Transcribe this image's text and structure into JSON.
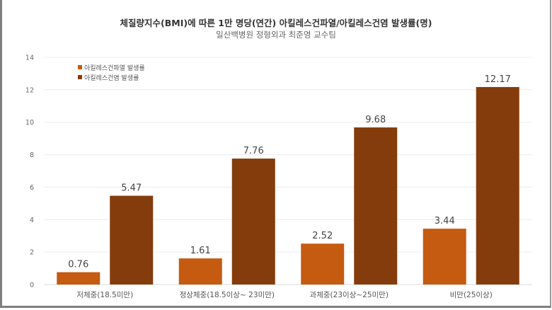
{
  "chart_data": {
    "type": "bar",
    "title": "체질량지수(BMI)에 따른 1만 명당(연간) 아킬레스건파열/아킬레스건염 발생률(명)",
    "subtitle": "일산백병원 정형외과 최준영 교수팀",
    "categories": [
      "저체중(18.5미만)",
      "정상체중(18.5이상~ 23미만)",
      "과체중(23이상~25미만)",
      "비만(25이상)"
    ],
    "series": [
      {
        "name": "아킬레스건파열 발생률",
        "values": [
          0.76,
          1.61,
          2.52,
          3.44
        ],
        "color": "#C55A11"
      },
      {
        "name": "아킬레스건염 발생률",
        "values": [
          5.47,
          7.76,
          9.68,
          12.17
        ],
        "color": "#843C0C"
      }
    ],
    "ylim": [
      0,
      14
    ],
    "yticks": [
      0,
      2,
      4,
      6,
      8,
      10,
      12,
      14
    ],
    "grid": true,
    "legend": "top-left",
    "data_labels": true
  }
}
